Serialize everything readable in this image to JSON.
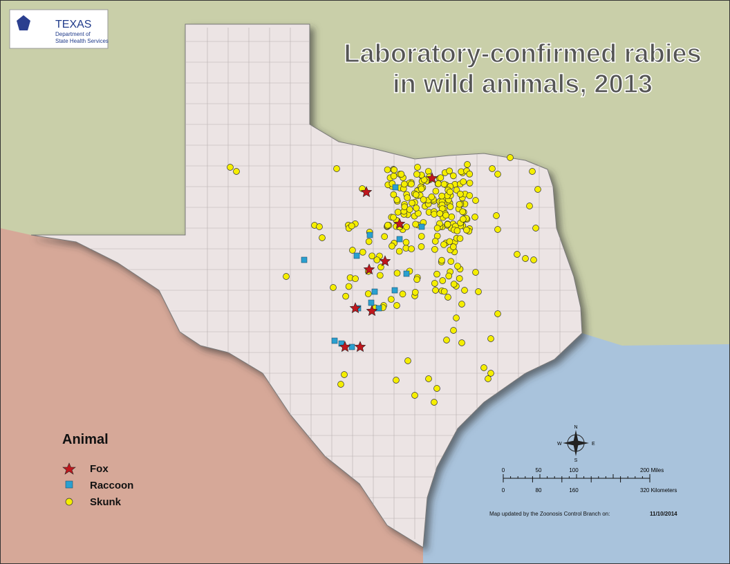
{
  "logo": {
    "name": "TEXAS",
    "line1": "Department of",
    "line2": "State Health Services"
  },
  "title": {
    "line1": "Laboratory-confirmed rabies",
    "line2": "in wild animals, 2013"
  },
  "legend": {
    "title": "Animal",
    "items": [
      "Fox",
      "Raccoon",
      "Skunk"
    ]
  },
  "compass": {
    "n": "N",
    "s": "S",
    "e": "E",
    "w": "W"
  },
  "scale": {
    "miles": [
      "0",
      "50",
      "100",
      "200 Miles"
    ],
    "kilometers": [
      "0",
      "80",
      "160",
      "320 Kilometers"
    ]
  },
  "footer": {
    "text": "Map updated by the Zoonosis Control Branch on:",
    "date": "11/10/2014"
  }
}
